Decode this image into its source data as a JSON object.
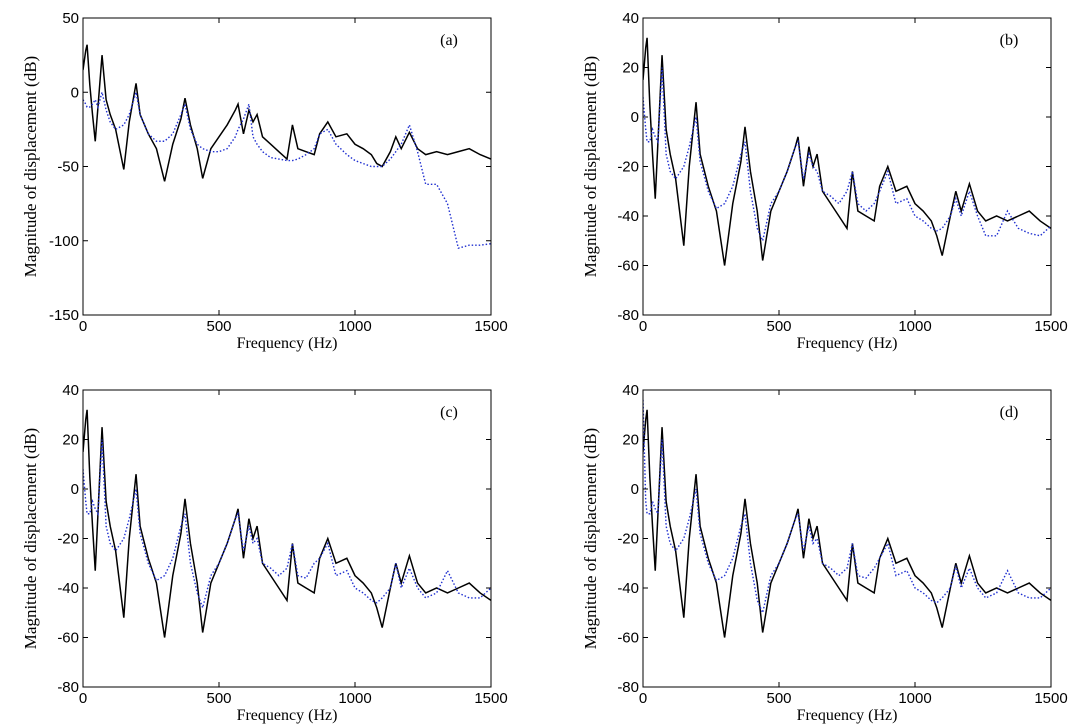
{
  "chart_data": [
    {
      "type": "line",
      "annotation": "(a)",
      "xlabel": "Frequency (Hz)",
      "ylabel": "Magnitude of displacement (dB)",
      "xlim": [
        0,
        1500
      ],
      "xticks": [
        0,
        500,
        1000,
        1500
      ],
      "ylim": [
        -150,
        50
      ],
      "yticks": [
        -150,
        -100,
        -50,
        0,
        50
      ],
      "x": [
        0,
        10,
        15,
        25,
        35,
        45,
        55,
        70,
        85,
        100,
        120,
        150,
        170,
        195,
        210,
        240,
        270,
        300,
        330,
        360,
        375,
        395,
        420,
        440,
        470,
        500,
        530,
        560,
        570,
        590,
        610,
        625,
        640,
        660,
        690,
        720,
        750,
        770,
        790,
        820,
        850,
        870,
        900,
        930,
        970,
        1000,
        1030,
        1060,
        1080,
        1100,
        1130,
        1150,
        1170,
        1200,
        1230,
        1260,
        1300,
        1340,
        1380,
        1420,
        1460,
        1500
      ],
      "series": [
        {
          "color": "#000000",
          "dash": "solid",
          "values": [
            15,
            28,
            32,
            5,
            -15,
            -33,
            -10,
            25,
            -5,
            -15,
            -25,
            -52,
            -20,
            6,
            -15,
            -28,
            -38,
            -60,
            -35,
            -18,
            -4,
            -22,
            -38,
            -58,
            -38,
            -30,
            -22,
            -12,
            -8,
            -28,
            -12,
            -20,
            -15,
            -30,
            -35,
            -40,
            -45,
            -22,
            -38,
            -40,
            -42,
            -28,
            -20,
            -30,
            -28,
            -35,
            -38,
            -42,
            -48,
            -50,
            -40,
            -30,
            -38,
            -27,
            -38,
            -42,
            -40,
            -42,
            -40,
            -38,
            -42,
            -45
          ]
        },
        {
          "color": "#1f2fd0",
          "dash": "dotted",
          "values": [
            -5,
            -8,
            -10,
            -10,
            -8,
            -5,
            -10,
            0,
            -12,
            -20,
            -25,
            -22,
            -15,
            0,
            -15,
            -28,
            -33,
            -33,
            -28,
            -15,
            -8,
            -25,
            -35,
            -38,
            -40,
            -40,
            -38,
            -30,
            -25,
            -18,
            -8,
            -30,
            -35,
            -40,
            -44,
            -45,
            -46,
            -46,
            -45,
            -42,
            -38,
            -28,
            -25,
            -35,
            -42,
            -46,
            -48,
            -50,
            -50,
            -50,
            -45,
            -40,
            -35,
            -22,
            -40,
            -62,
            -62,
            -75,
            -105,
            -103,
            -103,
            -102
          ]
        }
      ]
    },
    {
      "type": "line",
      "annotation": "(b)",
      "xlabel": "Frequency (Hz)",
      "ylabel": "Magnitude of displacement (dB)",
      "xlim": [
        0,
        1500
      ],
      "xticks": [
        0,
        500,
        1000,
        1500
      ],
      "ylim": [
        -80,
        40
      ],
      "yticks": [
        -80,
        -60,
        -40,
        -20,
        0,
        20,
        40
      ],
      "x": [
        0,
        10,
        15,
        25,
        35,
        45,
        55,
        70,
        85,
        100,
        120,
        150,
        170,
        195,
        210,
        240,
        270,
        300,
        330,
        360,
        375,
        395,
        420,
        440,
        470,
        500,
        530,
        560,
        570,
        590,
        610,
        625,
        640,
        660,
        690,
        720,
        750,
        770,
        790,
        820,
        850,
        870,
        900,
        930,
        970,
        1000,
        1030,
        1060,
        1080,
        1100,
        1130,
        1150,
        1170,
        1200,
        1230,
        1260,
        1300,
        1340,
        1380,
        1420,
        1460,
        1500
      ],
      "series": [
        {
          "color": "#000000",
          "dash": "solid",
          "values": [
            15,
            28,
            32,
            5,
            -15,
            -33,
            -10,
            25,
            -5,
            -15,
            -25,
            -52,
            -20,
            6,
            -15,
            -28,
            -38,
            -60,
            -35,
            -18,
            -4,
            -22,
            -38,
            -58,
            -38,
            -30,
            -22,
            -12,
            -8,
            -28,
            -12,
            -20,
            -15,
            -30,
            -35,
            -40,
            -45,
            -22,
            -38,
            -40,
            -42,
            -28,
            -20,
            -30,
            -28,
            -35,
            -38,
            -42,
            -48,
            -56,
            -40,
            -30,
            -38,
            -27,
            -38,
            -42,
            -40,
            -42,
            -40,
            -38,
            -42,
            -45
          ]
        },
        {
          "color": "#1f2fd0",
          "dash": "dotted",
          "values": [
            8,
            -5,
            -10,
            -10,
            -5,
            -8,
            -10,
            20,
            -15,
            -22,
            -25,
            -20,
            -12,
            0,
            -18,
            -30,
            -37,
            -35,
            -28,
            -15,
            -10,
            -30,
            -45,
            -50,
            -35,
            -30,
            -22,
            -12,
            -10,
            -25,
            -15,
            -20,
            -22,
            -30,
            -32,
            -35,
            -30,
            -22,
            -35,
            -38,
            -35,
            -30,
            -22,
            -35,
            -33,
            -40,
            -42,
            -45,
            -46,
            -45,
            -40,
            -33,
            -40,
            -30,
            -40,
            -48,
            -48,
            -38,
            -45,
            -47,
            -48,
            -44
          ]
        }
      ]
    },
    {
      "type": "line",
      "annotation": "(c)",
      "xlabel": "Frequency (Hz)",
      "ylabel": "Magnitude of displacement (dB)",
      "xlim": [
        0,
        1500
      ],
      "xticks": [
        0,
        500,
        1000,
        1500
      ],
      "ylim": [
        -80,
        40
      ],
      "yticks": [
        -80,
        -60,
        -40,
        -20,
        0,
        20,
        40
      ],
      "x": [
        0,
        10,
        15,
        25,
        35,
        45,
        55,
        70,
        85,
        100,
        120,
        150,
        170,
        195,
        210,
        240,
        270,
        300,
        330,
        360,
        375,
        395,
        420,
        440,
        470,
        500,
        530,
        560,
        570,
        590,
        610,
        625,
        640,
        660,
        690,
        720,
        750,
        770,
        790,
        820,
        850,
        870,
        900,
        930,
        970,
        1000,
        1030,
        1060,
        1080,
        1100,
        1130,
        1150,
        1170,
        1200,
        1230,
        1260,
        1300,
        1340,
        1380,
        1420,
        1460,
        1500
      ],
      "series": [
        {
          "color": "#000000",
          "dash": "solid",
          "values": [
            15,
            28,
            32,
            5,
            -15,
            -33,
            -10,
            25,
            -5,
            -15,
            -25,
            -52,
            -20,
            6,
            -15,
            -28,
            -38,
            -60,
            -35,
            -18,
            -4,
            -22,
            -38,
            -58,
            -38,
            -30,
            -22,
            -12,
            -8,
            -28,
            -12,
            -20,
            -15,
            -30,
            -35,
            -40,
            -45,
            -22,
            -38,
            -40,
            -42,
            -28,
            -20,
            -30,
            -28,
            -35,
            -38,
            -42,
            -48,
            -56,
            -40,
            -30,
            -38,
            -27,
            -38,
            -42,
            -40,
            -42,
            -40,
            -38,
            -42,
            -45
          ]
        },
        {
          "color": "#1f2fd0",
          "dash": "dotted",
          "values": [
            8,
            -5,
            -10,
            -10,
            -5,
            -8,
            -10,
            20,
            -15,
            -22,
            -25,
            -20,
            -12,
            0,
            -18,
            -30,
            -37,
            -35,
            -28,
            -15,
            -10,
            -30,
            -42,
            -48,
            -35,
            -30,
            -22,
            -12,
            -10,
            -25,
            -15,
            -22,
            -20,
            -30,
            -32,
            -35,
            -32,
            -22,
            -35,
            -36,
            -30,
            -28,
            -22,
            -35,
            -33,
            -40,
            -42,
            -45,
            -46,
            -44,
            -40,
            -30,
            -40,
            -32,
            -40,
            -44,
            -42,
            -33,
            -42,
            -44,
            -44,
            -40
          ]
        }
      ]
    },
    {
      "type": "line",
      "annotation": "(d)",
      "xlabel": "Frequency (Hz)",
      "ylabel": "Magnitude of displacement (dB)",
      "xlim": [
        0,
        1500
      ],
      "xticks": [
        0,
        500,
        1000,
        1500
      ],
      "ylim": [
        -80,
        40
      ],
      "yticks": [
        -80,
        -60,
        -40,
        -20,
        0,
        20,
        40
      ],
      "x": [
        0,
        10,
        15,
        25,
        35,
        45,
        55,
        70,
        85,
        100,
        120,
        150,
        170,
        195,
        210,
        240,
        270,
        300,
        330,
        360,
        375,
        395,
        420,
        440,
        470,
        500,
        530,
        560,
        570,
        590,
        610,
        625,
        640,
        660,
        690,
        720,
        750,
        770,
        790,
        820,
        850,
        870,
        900,
        930,
        970,
        1000,
        1030,
        1060,
        1080,
        1100,
        1130,
        1150,
        1170,
        1200,
        1230,
        1260,
        1300,
        1340,
        1380,
        1420,
        1460,
        1500
      ],
      "series": [
        {
          "color": "#000000",
          "dash": "solid",
          "values": [
            15,
            28,
            32,
            5,
            -15,
            -33,
            -10,
            25,
            -5,
            -15,
            -25,
            -52,
            -20,
            6,
            -15,
            -28,
            -38,
            -60,
            -35,
            -18,
            -4,
            -22,
            -38,
            -58,
            -38,
            -30,
            -22,
            -12,
            -8,
            -28,
            -12,
            -20,
            -15,
            -30,
            -35,
            -40,
            -45,
            -22,
            -38,
            -40,
            -42,
            -28,
            -20,
            -30,
            -28,
            -35,
            -38,
            -42,
            -48,
            -56,
            -40,
            -30,
            -38,
            -27,
            -38,
            -42,
            -40,
            -42,
            -40,
            -38,
            -42,
            -45
          ]
        },
        {
          "color": "#1f2fd0",
          "dash": "dotted",
          "values": [
            36,
            -5,
            -10,
            -10,
            -5,
            -8,
            -10,
            20,
            -15,
            -22,
            -25,
            -20,
            -12,
            0,
            -18,
            -30,
            -37,
            -35,
            -28,
            -15,
            -10,
            -30,
            -45,
            -50,
            -35,
            -30,
            -22,
            -12,
            -10,
            -25,
            -15,
            -22,
            -20,
            -30,
            -32,
            -35,
            -32,
            -22,
            -35,
            -36,
            -32,
            -28,
            -22,
            -35,
            -33,
            -40,
            -42,
            -45,
            -46,
            -44,
            -40,
            -31,
            -40,
            -32,
            -40,
            -44,
            -42,
            -33,
            -42,
            -44,
            -44,
            -40
          ]
        }
      ]
    }
  ]
}
